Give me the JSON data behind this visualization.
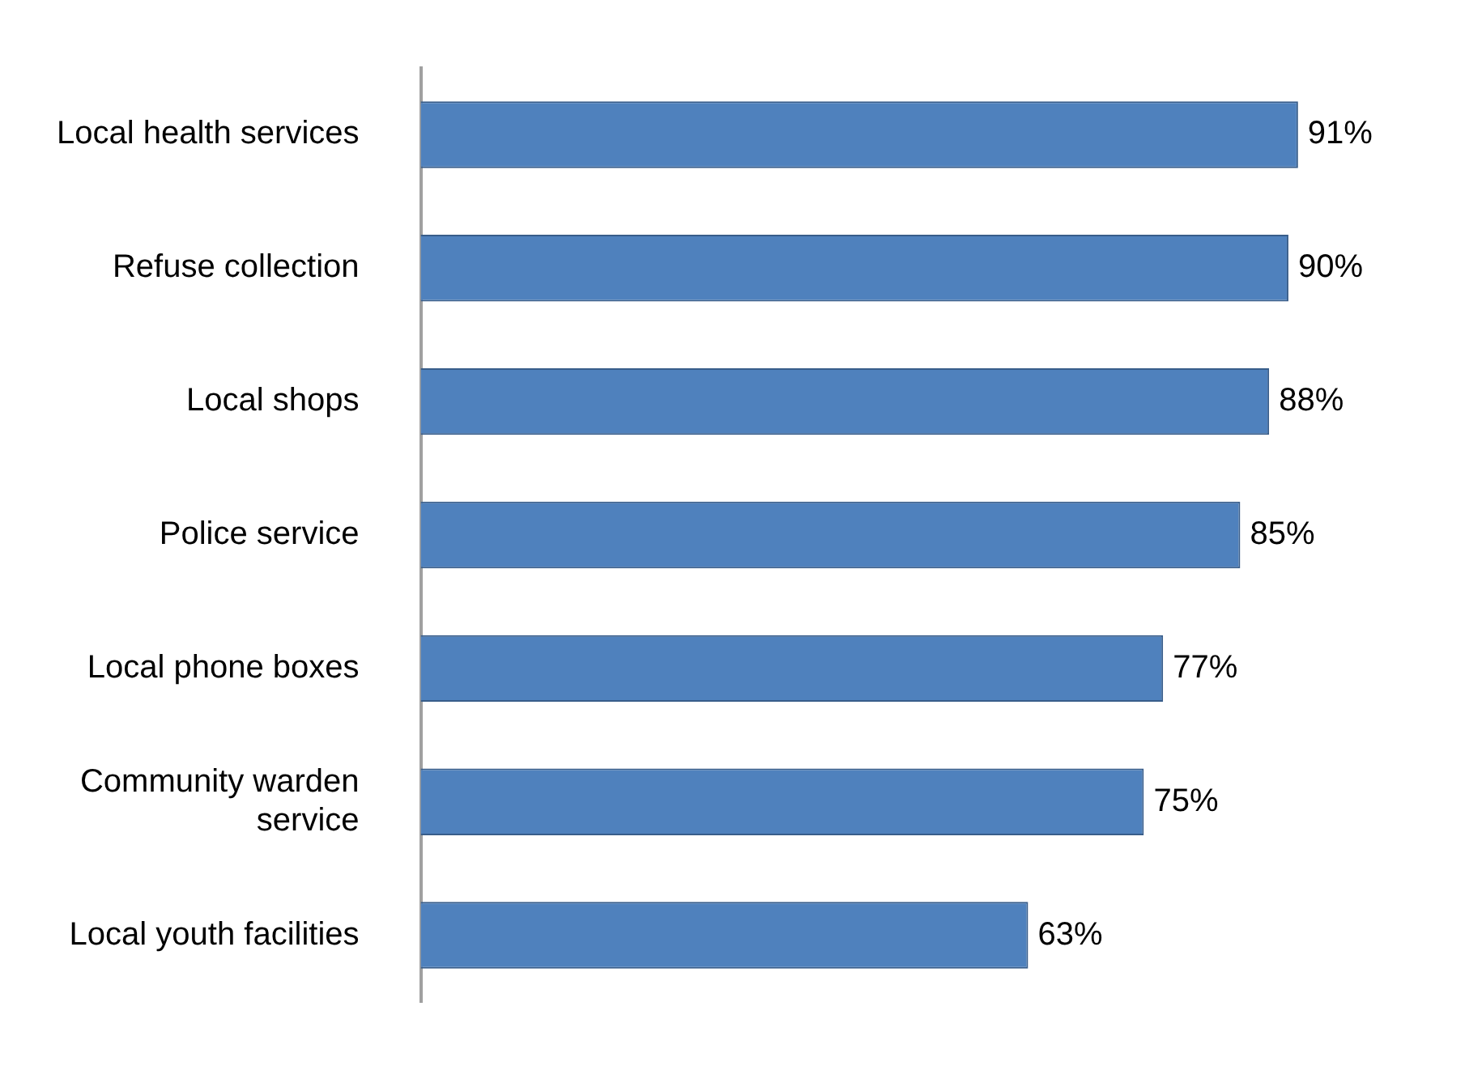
{
  "chart_data": {
    "type": "bar",
    "orientation": "horizontal",
    "categories": [
      "Local health services",
      "Refuse collection",
      "Local shops",
      "Police service",
      "Local phone boxes",
      "Community warden service",
      "Local youth facilities"
    ],
    "values": [
      91,
      90,
      88,
      85,
      77,
      75,
      63
    ],
    "color": "#4f81bd",
    "value_labels": [
      "91%",
      "90%",
      "88%",
      "85%",
      "77%",
      "75%",
      "63%"
    ],
    "legend": false,
    "tick_labels": "y"
  }
}
